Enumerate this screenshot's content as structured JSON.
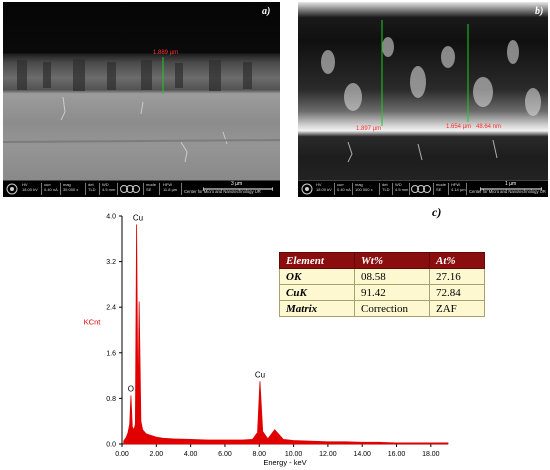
{
  "panels": {
    "a": {
      "label": "a)",
      "measurement": "1.889 µm",
      "infobar": {
        "hv_label": "HV",
        "hv": "18.00 kV",
        "curr_label": "curr",
        "curr": "0.40 nA",
        "mag_label": "mag",
        "mag": "35 000 x",
        "det_label": "det",
        "det": "TLD",
        "wd_label": "WD",
        "wd": "4.5 mm",
        "mode_label": "mode",
        "mode": "SE",
        "hfw_label": "HFW",
        "hfw": "11.8 µm",
        "scale": "3 µm",
        "org": "Center for Micro and Nanotechnology UR"
      }
    },
    "b": {
      "label": "b)",
      "measurement_left": "1.897 µm",
      "measurement_right": "1.654 µm",
      "measurement_right_extra": "48.64 nm",
      "infobar": {
        "hv_label": "HV",
        "hv": "18.00 kV",
        "curr_label": "curr",
        "curr": "0.40 nA",
        "mag_label": "mag",
        "mag": "100 000 x",
        "det_label": "det",
        "det": "TLD",
        "wd_label": "WD",
        "wd": "4.5 mm",
        "mode_label": "mode",
        "mode": "SE",
        "hfw_label": "HFW",
        "hfw": "4.14 µm",
        "scale": "1 µm",
        "org": "Center for Micro and Nanotechnology UR"
      }
    },
    "c": {
      "label": "c)"
    }
  },
  "table": {
    "headers": [
      "Element",
      "Wt%",
      "At%"
    ],
    "rows": [
      [
        "OK",
        "08.58",
        "27.16"
      ],
      [
        "CuK",
        "91.42",
        "72.84"
      ],
      [
        "Matrix",
        "Correction",
        "ZAF"
      ]
    ]
  },
  "colors": {
    "spectrum": "#e00000",
    "table_header": "#8b0e0e",
    "table_body": "#fdf8cf",
    "measure": "#ff3030"
  },
  "chart_data": {
    "type": "area",
    "xlabel": "Energy - keV",
    "ylabel": "KCnt",
    "xlim": [
      0,
      19.0
    ],
    "ylim": [
      0,
      4.0
    ],
    "xticks": [
      "0.00",
      "2.00",
      "4.00",
      "6.00",
      "8.00",
      "10.00",
      "12.00",
      "14.00",
      "16.00",
      "18.00"
    ],
    "yticks": [
      "0.0",
      "0.8",
      "1.6",
      "2.4",
      "3.2",
      "4.0"
    ],
    "series": [
      {
        "x": [
          0.1,
          0.25,
          0.35,
          0.45,
          0.52,
          0.6,
          0.7,
          0.78,
          0.85,
          0.93,
          1.0,
          1.1,
          1.2,
          1.4,
          1.7,
          2.0,
          2.4,
          3.0,
          4.0,
          5.0,
          6.0,
          7.0,
          7.6,
          7.9,
          8.04,
          8.2,
          8.5,
          8.9,
          9.4,
          10.0,
          11.0,
          12.0,
          13.0,
          14.0,
          15.0,
          16.0,
          17.0,
          18.0,
          19.0
        ],
        "y": [
          0.05,
          0.12,
          0.2,
          0.35,
          0.85,
          0.3,
          0.25,
          0.35,
          3.85,
          0.6,
          2.5,
          0.4,
          0.25,
          0.18,
          0.15,
          0.12,
          0.1,
          0.09,
          0.08,
          0.07,
          0.07,
          0.07,
          0.08,
          0.2,
          1.1,
          0.22,
          0.09,
          0.25,
          0.08,
          0.06,
          0.05,
          0.04,
          0.04,
          0.03,
          0.03,
          0.02,
          0.02,
          0.02,
          0.02
        ]
      }
    ],
    "peak_labels": [
      {
        "text": "Cu",
        "x": 0.93,
        "y": 3.85
      },
      {
        "text": "O",
        "x": 0.52,
        "y": 0.85
      },
      {
        "text": "Cu",
        "x": 8.04,
        "y": 1.1
      }
    ]
  }
}
